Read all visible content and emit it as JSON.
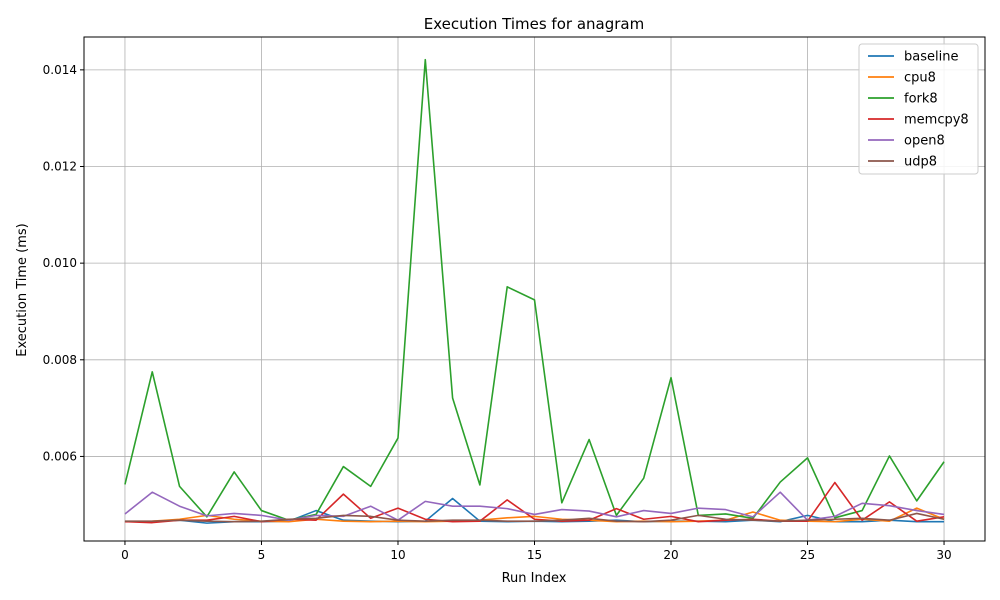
{
  "chart_data": {
    "type": "line",
    "title": "Execution Times for anagram",
    "xlabel": "Run Index",
    "ylabel": "Execution Time (ms)",
    "xlim": [
      -1.5,
      31.5
    ],
    "ylim": [
      0.00425,
      0.01468
    ],
    "x_ticks": [
      0,
      5,
      10,
      15,
      20,
      25,
      30
    ],
    "y_ticks": [
      0.006,
      0.008,
      0.01,
      0.012,
      0.014
    ],
    "y_tick_labels": [
      "0.006",
      "0.008",
      "0.010",
      "0.012",
      "0.014"
    ],
    "grid": true,
    "legend_position": "top-right",
    "x": [
      0,
      1,
      2,
      3,
      4,
      5,
      6,
      7,
      8,
      9,
      10,
      11,
      12,
      13,
      14,
      15,
      16,
      17,
      18,
      19,
      20,
      21,
      22,
      23,
      24,
      25,
      26,
      27,
      28,
      29,
      30
    ],
    "series": [
      {
        "name": "baseline",
        "color": "#1f77b4",
        "values": [
          0.00465,
          0.00465,
          0.00468,
          0.00462,
          0.00465,
          0.00465,
          0.00466,
          0.00488,
          0.00468,
          0.00466,
          0.00465,
          0.00466,
          0.00513,
          0.00466,
          0.00465,
          0.00466,
          0.00465,
          0.00466,
          0.00468,
          0.00465,
          0.00466,
          0.00466,
          0.00465,
          0.00468,
          0.00465,
          0.00478,
          0.00465,
          0.00465,
          0.00468,
          0.00465,
          0.00465
        ]
      },
      {
        "name": "cpu8",
        "color": "#ff7f0e",
        "values": [
          0.00465,
          0.00466,
          0.0047,
          0.00478,
          0.0047,
          0.00466,
          0.00465,
          0.0047,
          0.00466,
          0.00465,
          0.00466,
          0.00465,
          0.00466,
          0.00468,
          0.00473,
          0.00476,
          0.0047,
          0.00468,
          0.00465,
          0.00466,
          0.00465,
          0.00466,
          0.00468,
          0.00485,
          0.00468,
          0.00466,
          0.00465,
          0.0047,
          0.00466,
          0.00493,
          0.0047
        ]
      },
      {
        "name": "fork8",
        "color": "#2ca02c",
        "values": [
          0.00542,
          0.00775,
          0.00538,
          0.00475,
          0.00568,
          0.00488,
          0.00468,
          0.0048,
          0.00579,
          0.00538,
          0.00638,
          0.01421,
          0.00721,
          0.00541,
          0.00951,
          0.00924,
          0.00504,
          0.00635,
          0.00478,
          0.00555,
          0.00763,
          0.00478,
          0.00481,
          0.00472,
          0.00547,
          0.00597,
          0.00473,
          0.00488,
          0.00601,
          0.00508,
          0.00589
        ]
      },
      {
        "name": "memcpy8",
        "color": "#d62728",
        "values": [
          0.00465,
          0.00463,
          0.00468,
          0.00468,
          0.00476,
          0.00465,
          0.0047,
          0.00468,
          0.00522,
          0.00472,
          0.00493,
          0.0047,
          0.00465,
          0.00466,
          0.0051,
          0.0047,
          0.00466,
          0.00468,
          0.00492,
          0.0047,
          0.00476,
          0.00465,
          0.00468,
          0.0047,
          0.00466,
          0.00466,
          0.00546,
          0.00468,
          0.00506,
          0.00466,
          0.00475
        ]
      },
      {
        "name": "open8",
        "color": "#9467bd",
        "values": [
          0.00481,
          0.00526,
          0.00497,
          0.00477,
          0.00482,
          0.00478,
          0.00468,
          0.00478,
          0.00476,
          0.00497,
          0.00468,
          0.00507,
          0.00497,
          0.00497,
          0.00492,
          0.0048,
          0.0049,
          0.00487,
          0.00475,
          0.00488,
          0.00482,
          0.00493,
          0.0049,
          0.00475,
          0.00526,
          0.00468,
          0.00476,
          0.00503,
          0.00498,
          0.00488,
          0.0048
        ]
      },
      {
        "name": "udp8",
        "color": "#8c564b",
        "values": [
          0.00466,
          0.00466,
          0.00468,
          0.00466,
          0.00465,
          0.00466,
          0.0047,
          0.00472,
          0.00478,
          0.00476,
          0.00468,
          0.00466,
          0.00468,
          0.00468,
          0.00466,
          0.00466,
          0.00468,
          0.00472,
          0.00466,
          0.00465,
          0.00468,
          0.00478,
          0.0047,
          0.00468,
          0.00466,
          0.00468,
          0.0047,
          0.00472,
          0.00468,
          0.00482,
          0.0047
        ]
      }
    ]
  }
}
